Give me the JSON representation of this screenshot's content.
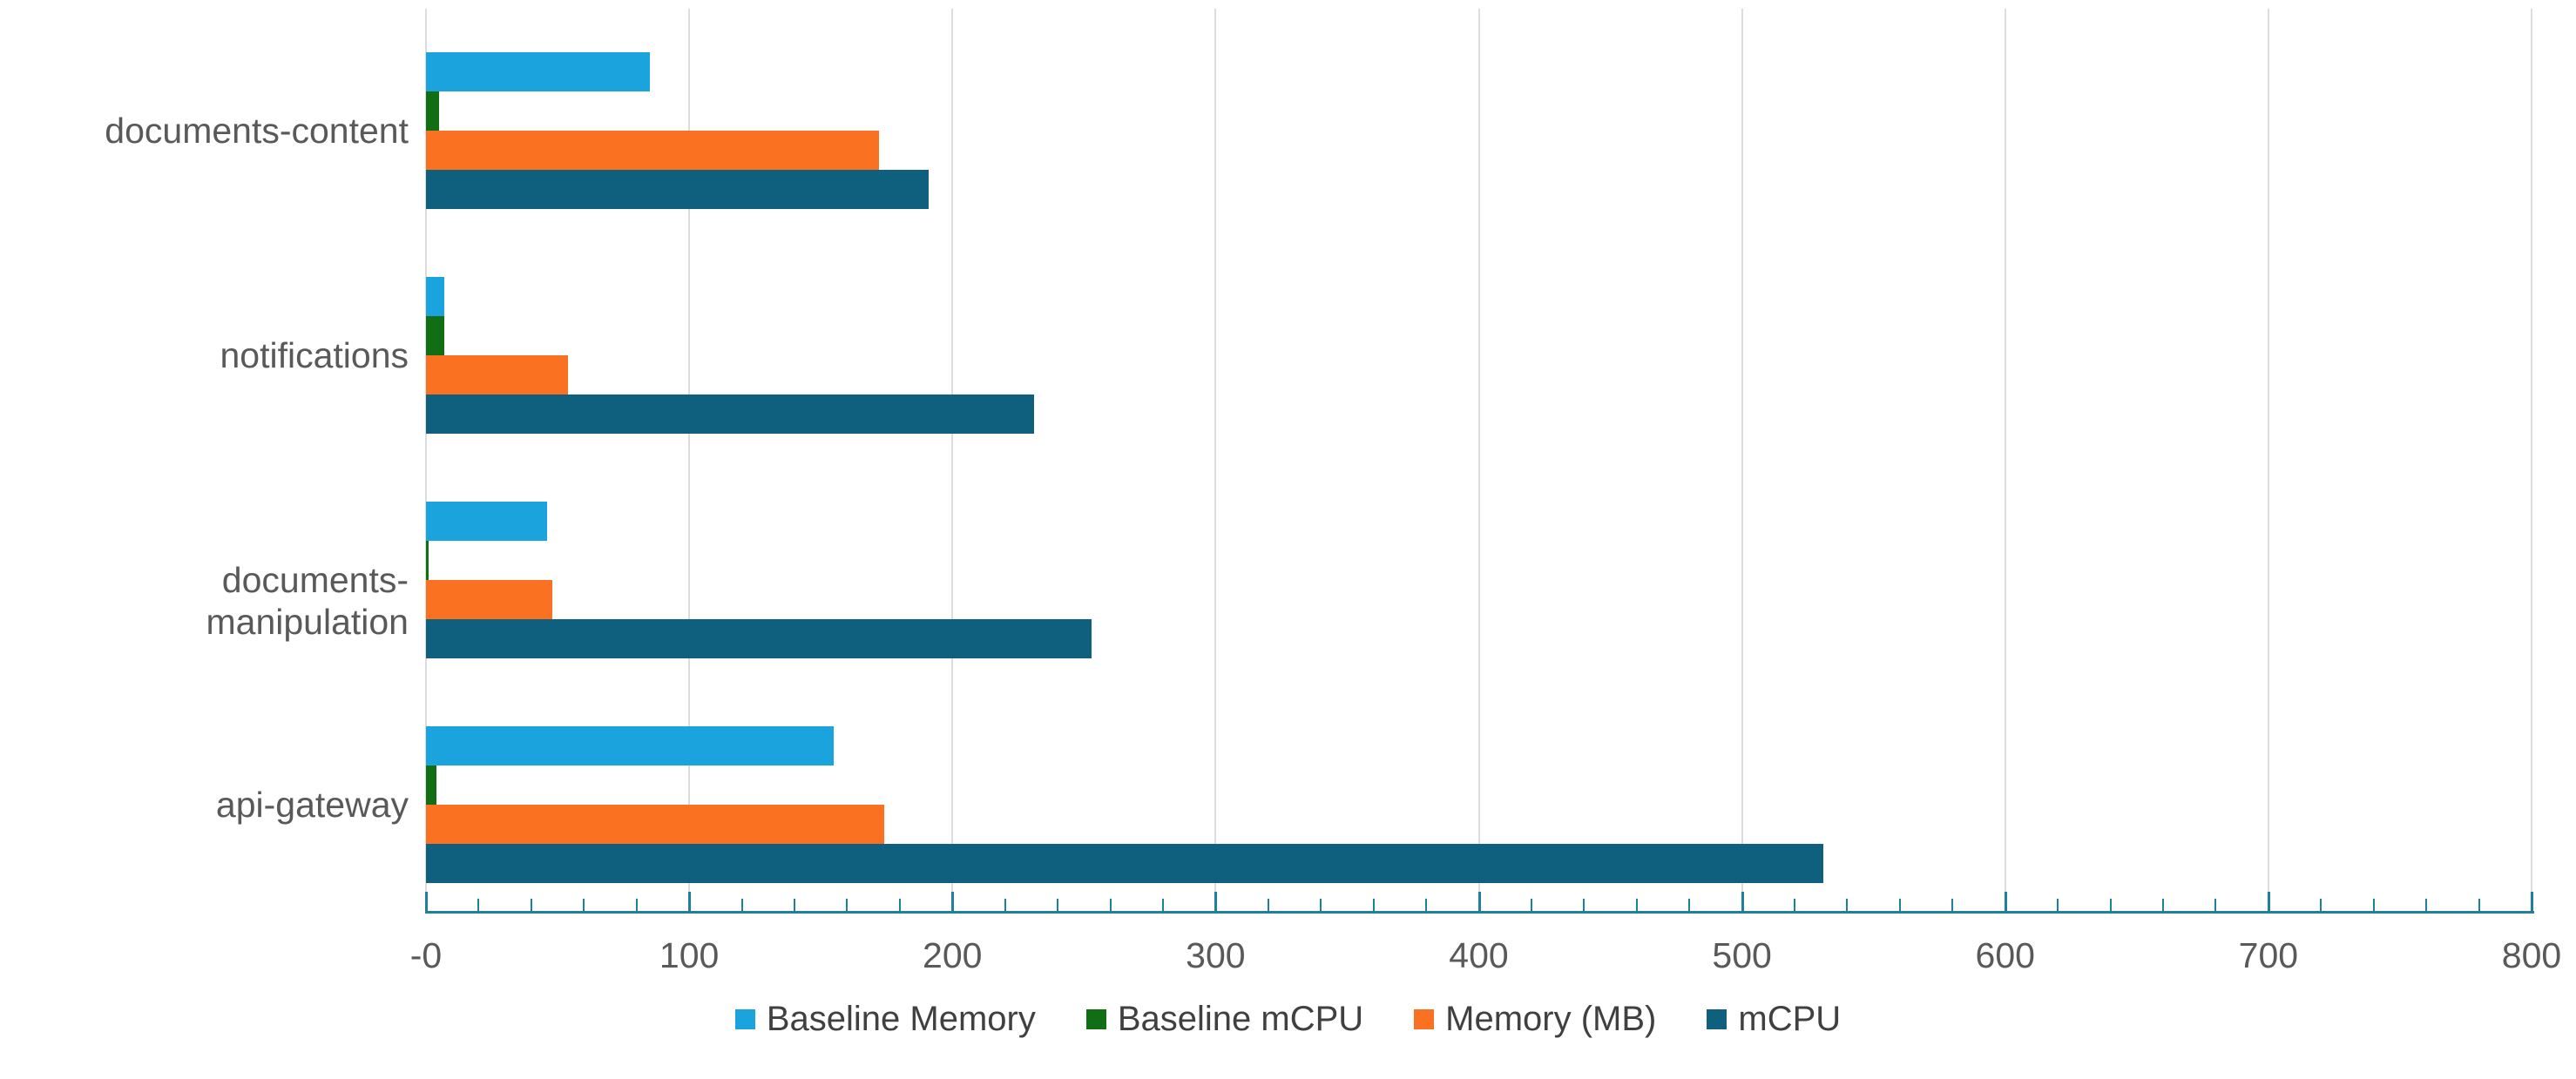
{
  "chart_data": {
    "type": "bar",
    "orientation": "horizontal",
    "title": "",
    "xlabel": "",
    "ylabel": "",
    "categories": [
      "documents-content",
      "notifications",
      "documents-manipulation",
      "api-gateway"
    ],
    "series": [
      {
        "name": "Baseline Memory",
        "color": "#1AA3DC",
        "values": [
          85,
          7,
          46,
          155
        ]
      },
      {
        "name": "Baseline mCPU",
        "color": "#116E15",
        "values": [
          5,
          7,
          1,
          4
        ]
      },
      {
        "name": "Memory (MB)",
        "color": "#FA7122",
        "values": [
          172,
          54,
          48,
          174
        ]
      },
      {
        "name": "mCPU",
        "color": "#0F5F7E",
        "values": [
          191,
          231,
          253,
          531
        ]
      }
    ],
    "x_axis": {
      "min": 0,
      "max": 800,
      "major_tick_interval": 100,
      "minor_tick_interval": 20,
      "tick_labels": [
        "-0",
        "100",
        "200",
        "300",
        "400",
        "500",
        "600",
        "700",
        "800"
      ]
    },
    "grid": true,
    "legend_position": "bottom",
    "colors": {
      "axis_line": "#1E7FA0",
      "gridline": "#DCDCDC",
      "category_text": "#595959",
      "tick_text": "#595959",
      "legend_text": "#404040",
      "background": "#FFFFFF"
    }
  }
}
